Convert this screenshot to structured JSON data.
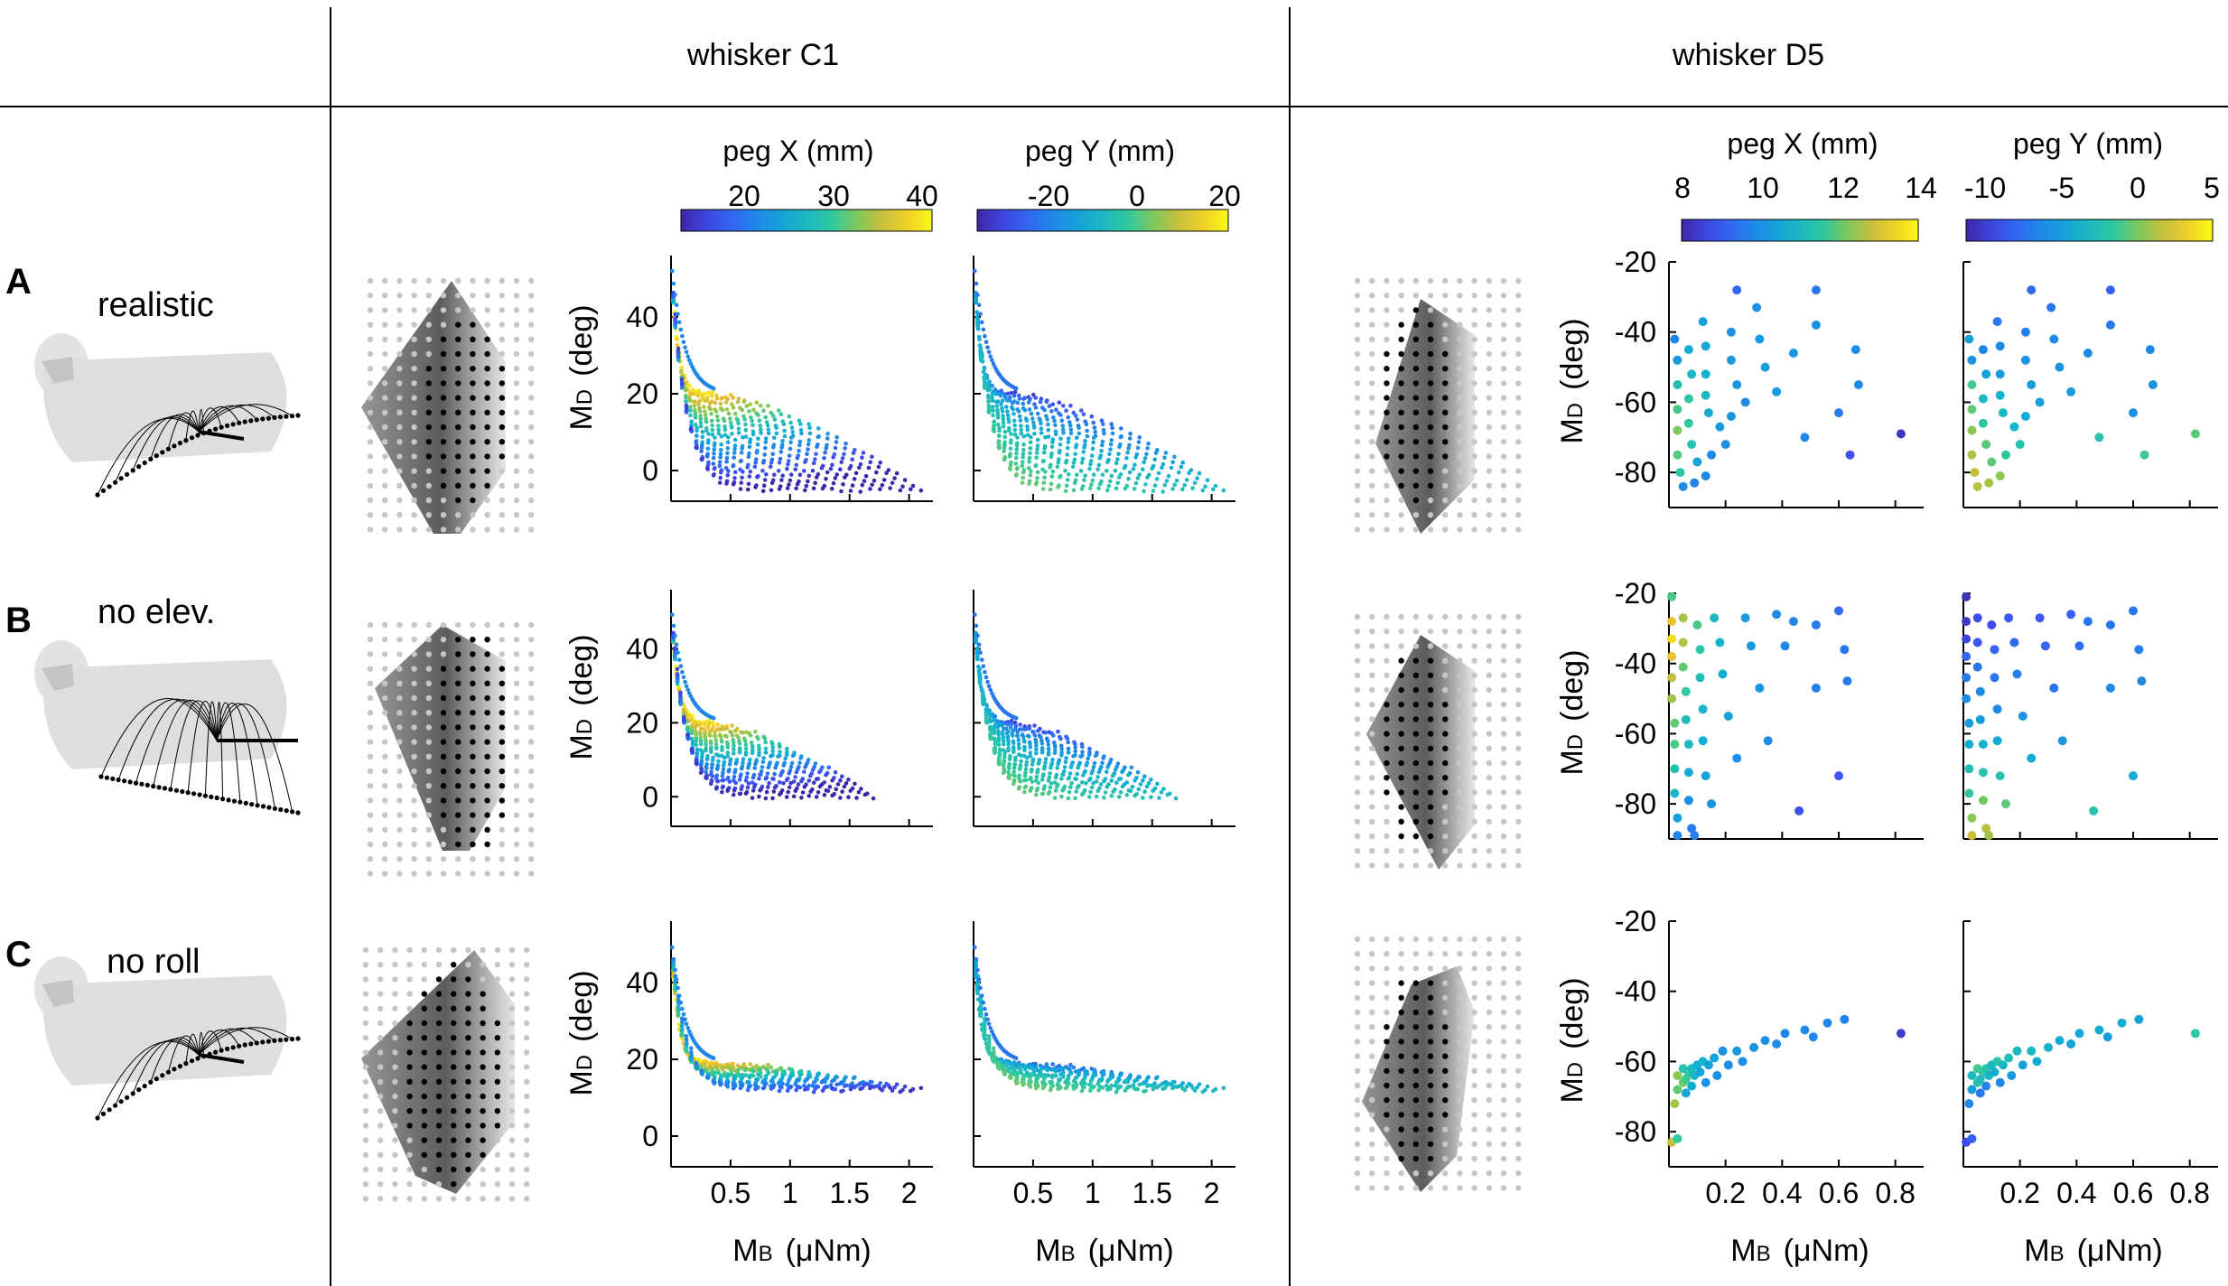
{
  "headers": {
    "c1": "whisker C1",
    "d5": "whisker D5"
  },
  "rows": [
    {
      "letter": "A",
      "label": "realistic"
    },
    {
      "letter": "B",
      "label": "no elev."
    },
    {
      "letter": "C",
      "label": "no roll"
    }
  ],
  "colorbars": [
    {
      "title": "peg X (mm)",
      "ticks": [
        "20",
        "30",
        "40"
      ]
    },
    {
      "title": "peg Y (mm)",
      "ticks": [
        "-20",
        "0",
        "20"
      ]
    },
    {
      "title": "peg X (mm)",
      "ticks": [
        "8",
        "10",
        "12",
        "14"
      ]
    },
    {
      "title": "peg Y (mm)",
      "ticks": [
        "-10",
        "-5",
        "0",
        "5"
      ]
    }
  ],
  "axes": {
    "ylabel_main": "M",
    "ylabel_sub": "D",
    "ylabel_unit": "(deg)",
    "xlabel_main": "M",
    "xlabel_sub": "B",
    "xlabel_unit": "(μNm)"
  },
  "colors": {
    "viridis_low": "#3e26a8",
    "viridis_mid": "#12beb9",
    "viridis_high": "#f9fb15",
    "divider": "#000000"
  },
  "chart_data": [
    {
      "type": "scatter",
      "panel": "whisker C1",
      "xlabel": "MB (μNm)",
      "ylabel": "MD (deg)",
      "xlim": [
        0,
        2.2
      ],
      "ylim": [
        -8,
        56
      ],
      "xticks": [
        "0.5",
        "1",
        "1.5",
        "2"
      ],
      "yticks": [
        "0",
        "20",
        "40"
      ],
      "color_by": [
        "peg X (mm)",
        "peg Y (mm)"
      ],
      "color_range_x": [
        12,
        40
      ],
      "color_range_y": [
        -30,
        20
      ],
      "rows": [
        {
          "condition": "realistic",
          "asymptote_deg": 20,
          "x_max": 2.1,
          "min_deg": -5,
          "peak_deg": 55,
          "color_ends_x": [
            12,
            40
          ],
          "color_ends_y": [
            -30,
            20
          ]
        },
        {
          "condition": "no elev.",
          "asymptote_deg": 20,
          "x_max": 1.7,
          "min_deg": 0,
          "peak_deg": 52,
          "color_ends_x": [
            14,
            36
          ],
          "color_ends_y": [
            -20,
            10
          ]
        },
        {
          "condition": "no roll",
          "asymptote_deg": 19,
          "x_max": 2.1,
          "min_deg": 12,
          "peak_deg": 52,
          "color_ends_x": [
            14,
            38
          ],
          "color_ends_y": [
            -20,
            12
          ]
        }
      ]
    },
    {
      "type": "scatter",
      "panel": "whisker D5",
      "xlabel": "MB (μNm)",
      "ylabel": "MD (deg)",
      "xlim": [
        0,
        0.9
      ],
      "ylim": [
        -90,
        -20
      ],
      "xticks": [
        "0.2",
        "0.4",
        "0.6",
        "0.8"
      ],
      "yticks": [
        "-20",
        "-40",
        "-60",
        "-80"
      ],
      "color_by": [
        "peg X (mm)",
        "peg Y (mm)"
      ],
      "color_range_x": [
        8,
        14
      ],
      "color_range_y": [
        -11,
        5
      ],
      "rows": [
        {
          "condition": "realistic",
          "points": [
            {
              "x": 0.02,
              "y": -42,
              "px": 9.8,
              "py": -4.5
            },
            {
              "x": 0.03,
              "y": -48,
              "px": 10.2,
              "py": -5.5
            },
            {
              "x": 0.03,
              "y": -55,
              "px": 11.2,
              "py": -1.0
            },
            {
              "x": 0.03,
              "y": -62,
              "px": 11.8,
              "py": -0.3
            },
            {
              "x": 0.03,
              "y": -68,
              "px": 12.2,
              "py": 0.5
            },
            {
              "x": 0.03,
              "y": -75,
              "px": 11.9,
              "py": 1.2
            },
            {
              "x": 0.04,
              "y": -80,
              "px": 11.5,
              "py": 1.8
            },
            {
              "x": 0.05,
              "y": -84,
              "px": 9.9,
              "py": 1.5
            },
            {
              "x": 0.09,
              "y": -83,
              "px": 9.7,
              "py": 1.0
            },
            {
              "x": 0.13,
              "y": -81,
              "px": 9.8,
              "py": 0.5
            },
            {
              "x": 0.07,
              "y": -45,
              "px": 10.6,
              "py": -6.5
            },
            {
              "x": 0.08,
              "y": -52,
              "px": 11.0,
              "py": -4.5
            },
            {
              "x": 0.07,
              "y": -59,
              "px": 11.5,
              "py": -3.0
            },
            {
              "x": 0.07,
              "y": -66,
              "px": 11.6,
              "py": -1.5
            },
            {
              "x": 0.08,
              "y": -72,
              "px": 11.3,
              "py": -0.5
            },
            {
              "x": 0.1,
              "y": -77,
              "px": 10.4,
              "py": -0.5
            },
            {
              "x": 0.15,
              "y": -75,
              "px": 9.8,
              "py": -1.5
            },
            {
              "x": 0.2,
              "y": -72,
              "px": 10.0,
              "py": -2.0
            },
            {
              "x": 0.12,
              "y": -37,
              "px": 10.4,
              "py": -7.0
            },
            {
              "x": 0.13,
              "y": -44,
              "px": 10.5,
              "py": -6.0
            },
            {
              "x": 0.13,
              "y": -52,
              "px": 10.7,
              "py": -5.0
            },
            {
              "x": 0.13,
              "y": -58,
              "px": 11.0,
              "py": -3.5
            },
            {
              "x": 0.14,
              "y": -63,
              "px": 10.6,
              "py": -3.0
            },
            {
              "x": 0.18,
              "y": -67,
              "px": 10.2,
              "py": -3.5
            },
            {
              "x": 0.22,
              "y": -64,
              "px": 10.2,
              "py": -4.0
            },
            {
              "x": 0.24,
              "y": -28,
              "px": 9.2,
              "py": -7.5
            },
            {
              "x": 0.22,
              "y": -40,
              "px": 10.0,
              "py": -6.5
            },
            {
              "x": 0.22,
              "y": -48,
              "px": 10.2,
              "py": -5.5
            },
            {
              "x": 0.24,
              "y": -55,
              "px": 10.1,
              "py": -5.0
            },
            {
              "x": 0.27,
              "y": -60,
              "px": 9.9,
              "py": -5.0
            },
            {
              "x": 0.31,
              "y": -33,
              "px": 10.0,
              "py": -7.0
            },
            {
              "x": 0.32,
              "y": -42,
              "px": 10.2,
              "py": -6.0
            },
            {
              "x": 0.34,
              "y": -50,
              "px": 10.3,
              "py": -5.5
            },
            {
              "x": 0.38,
              "y": -57,
              "px": 10.2,
              "py": -5.0
            },
            {
              "x": 0.44,
              "y": -46,
              "px": 10.1,
              "py": -6.0
            },
            {
              "x": 0.48,
              "y": -70,
              "px": 9.9,
              "py": -2.0
            },
            {
              "x": 0.52,
              "y": -28,
              "px": 9.5,
              "py": -8.0
            },
            {
              "x": 0.52,
              "y": -38,
              "px": 10.0,
              "py": -7.0
            },
            {
              "x": 0.6,
              "y": -63,
              "px": 9.6,
              "py": -5.5
            },
            {
              "x": 0.66,
              "y": -45,
              "px": 9.9,
              "py": -6.0
            },
            {
              "x": 0.67,
              "y": -55,
              "px": 9.9,
              "py": -5.5
            },
            {
              "x": 0.64,
              "y": -75,
              "px": 8.8,
              "py": -1.0
            },
            {
              "x": 0.82,
              "y": -69,
              "px": 8.3,
              "py": -0.5
            }
          ]
        },
        {
          "condition": "no elev.",
          "points": [
            {
              "x": 0.01,
              "y": -21,
              "px": 11.8,
              "py": -10.5
            },
            {
              "x": 0.01,
              "y": -28,
              "px": 13.2,
              "py": -10.0
            },
            {
              "x": 0.01,
              "y": -33,
              "px": 13.6,
              "py": -9.5
            },
            {
              "x": 0.01,
              "y": -38,
              "px": 13.2,
              "py": -8.0
            },
            {
              "x": 0.01,
              "y": -44,
              "px": 12.8,
              "py": -7.0
            },
            {
              "x": 0.01,
              "y": -50,
              "px": 12.5,
              "py": -6.0
            },
            {
              "x": 0.02,
              "y": -57,
              "px": 12.0,
              "py": -5.0
            },
            {
              "x": 0.02,
              "y": -63,
              "px": 11.8,
              "py": -4.0
            },
            {
              "x": 0.02,
              "y": -70,
              "px": 11.3,
              "py": -2.5
            },
            {
              "x": 0.02,
              "y": -77,
              "px": 10.9,
              "py": -1.5
            },
            {
              "x": 0.03,
              "y": -84,
              "px": 10.3,
              "py": 0.5
            },
            {
              "x": 0.03,
              "y": -89,
              "px": 9.8,
              "py": 2.0
            },
            {
              "x": 0.05,
              "y": -27,
              "px": 12.5,
              "py": -9.0
            },
            {
              "x": 0.05,
              "y": -34,
              "px": 12.6,
              "py": -8.5
            },
            {
              "x": 0.05,
              "y": -41,
              "px": 12.0,
              "py": -7.0
            },
            {
              "x": 0.06,
              "y": -48,
              "px": 11.6,
              "py": -6.0
            },
            {
              "x": 0.06,
              "y": -56,
              "px": 11.2,
              "py": -5.0
            },
            {
              "x": 0.07,
              "y": -63,
              "px": 11.0,
              "py": -3.5
            },
            {
              "x": 0.07,
              "y": -71,
              "px": 10.5,
              "py": -2.0
            },
            {
              "x": 0.07,
              "y": -79,
              "px": 10.0,
              "py": 0.0
            },
            {
              "x": 0.08,
              "y": -87,
              "px": 9.6,
              "py": 1.5
            },
            {
              "x": 0.09,
              "y": -89,
              "px": 9.7,
              "py": 1.0
            },
            {
              "x": 0.1,
              "y": -29,
              "px": 11.8,
              "py": -9.0
            },
            {
              "x": 0.11,
              "y": -36,
              "px": 11.5,
              "py": -8.0
            },
            {
              "x": 0.11,
              "y": -44,
              "px": 11.2,
              "py": -7.0
            },
            {
              "x": 0.12,
              "y": -53,
              "px": 10.9,
              "py": -6.0
            },
            {
              "x": 0.12,
              "y": -62,
              "px": 10.7,
              "py": -4.0
            },
            {
              "x": 0.13,
              "y": -72,
              "px": 10.4,
              "py": -2.0
            },
            {
              "x": 0.15,
              "y": -80,
              "px": 10.0,
              "py": -0.5
            },
            {
              "x": 0.16,
              "y": -27,
              "px": 11.0,
              "py": -8.5
            },
            {
              "x": 0.18,
              "y": -34,
              "px": 10.8,
              "py": -7.5
            },
            {
              "x": 0.19,
              "y": -43,
              "px": 10.6,
              "py": -6.5
            },
            {
              "x": 0.21,
              "y": -55,
              "px": 10.4,
              "py": -5.5
            },
            {
              "x": 0.24,
              "y": -67,
              "px": 10.0,
              "py": -4.0
            },
            {
              "x": 0.27,
              "y": -27,
              "px": 10.3,
              "py": -8.5
            },
            {
              "x": 0.29,
              "y": -35,
              "px": 10.2,
              "py": -8.0
            },
            {
              "x": 0.32,
              "y": -47,
              "px": 10.1,
              "py": -7.0
            },
            {
              "x": 0.35,
              "y": -62,
              "px": 9.9,
              "py": -5.0
            },
            {
              "x": 0.38,
              "y": -26,
              "px": 9.9,
              "py": -8.0
            },
            {
              "x": 0.41,
              "y": -35,
              "px": 9.8,
              "py": -7.5
            },
            {
              "x": 0.44,
              "y": -28,
              "px": 9.8,
              "py": -7.0
            },
            {
              "x": 0.46,
              "y": -82,
              "px": 8.8,
              "py": -2.0
            },
            {
              "x": 0.52,
              "y": -29,
              "px": 9.6,
              "py": -7.0
            },
            {
              "x": 0.52,
              "y": -47,
              "px": 9.7,
              "py": -6.0
            },
            {
              "x": 0.6,
              "y": -25,
              "px": 9.3,
              "py": -7.0
            },
            {
              "x": 0.62,
              "y": -36,
              "px": 9.5,
              "py": -6.5
            },
            {
              "x": 0.63,
              "y": -45,
              "px": 9.6,
              "py": -6.0
            },
            {
              "x": 0.6,
              "y": -72,
              "px": 8.9,
              "py": -4.0
            }
          ]
        },
        {
          "condition": "no roll",
          "points": [
            {
              "x": 0.01,
              "y": -83,
              "px": 12.8,
              "py": -9.0
            },
            {
              "x": 0.03,
              "y": -82,
              "px": 11.6,
              "py": -8.0
            },
            {
              "x": 0.02,
              "y": -72,
              "px": 12.5,
              "py": -6.0
            },
            {
              "x": 0.03,
              "y": -68,
              "px": 12.0,
              "py": -5.0
            },
            {
              "x": 0.03,
              "y": -64,
              "px": 12.3,
              "py": -3.0
            },
            {
              "x": 0.05,
              "y": -66,
              "px": 12.1,
              "py": -2.0
            },
            {
              "x": 0.05,
              "y": -62,
              "px": 11.4,
              "py": -1.0
            },
            {
              "x": 0.06,
              "y": -69,
              "px": 10.5,
              "py": -7.0
            },
            {
              "x": 0.06,
              "y": -65,
              "px": 11.7,
              "py": -2.5
            },
            {
              "x": 0.07,
              "y": -63,
              "px": 11.5,
              "py": -1.5
            },
            {
              "x": 0.08,
              "y": -67,
              "px": 10.6,
              "py": -6.5
            },
            {
              "x": 0.08,
              "y": -62,
              "px": 11.1,
              "py": -2.0
            },
            {
              "x": 0.09,
              "y": -64,
              "px": 10.9,
              "py": -3.0
            },
            {
              "x": 0.1,
              "y": -61,
              "px": 10.7,
              "py": -3.0
            },
            {
              "x": 0.11,
              "y": -63,
              "px": 10.4,
              "py": -4.0
            },
            {
              "x": 0.12,
              "y": -60,
              "px": 10.8,
              "py": -2.0
            },
            {
              "x": 0.13,
              "y": -66,
              "px": 10.0,
              "py": -6.0
            },
            {
              "x": 0.14,
              "y": -61,
              "px": 10.4,
              "py": -3.0
            },
            {
              "x": 0.16,
              "y": -59,
              "px": 10.5,
              "py": -2.5
            },
            {
              "x": 0.17,
              "y": -64,
              "px": 10.0,
              "py": -5.0
            },
            {
              "x": 0.19,
              "y": -57,
              "px": 10.0,
              "py": -3.0
            },
            {
              "x": 0.21,
              "y": -61,
              "px": 9.9,
              "py": -4.5
            },
            {
              "x": 0.24,
              "y": -57,
              "px": 10.2,
              "py": -3.0
            },
            {
              "x": 0.26,
              "y": -60,
              "px": 10.0,
              "py": -4.0
            },
            {
              "x": 0.3,
              "y": -56,
              "px": 10.1,
              "py": -3.5
            },
            {
              "x": 0.34,
              "y": -54,
              "px": 10.0,
              "py": -4.0
            },
            {
              "x": 0.38,
              "y": -55,
              "px": 9.9,
              "py": -4.5
            },
            {
              "x": 0.41,
              "y": -52,
              "px": 9.8,
              "py": -4.5
            },
            {
              "x": 0.48,
              "y": -51,
              "px": 9.9,
              "py": -4.0
            },
            {
              "x": 0.51,
              "y": -53,
              "px": 9.8,
              "py": -5.0
            },
            {
              "x": 0.56,
              "y": -49,
              "px": 9.8,
              "py": -4.0
            },
            {
              "x": 0.62,
              "y": -48,
              "px": 9.7,
              "py": -4.5
            },
            {
              "x": 0.82,
              "y": -52,
              "px": 8.4,
              "py": -1.5
            }
          ]
        }
      ]
    }
  ]
}
